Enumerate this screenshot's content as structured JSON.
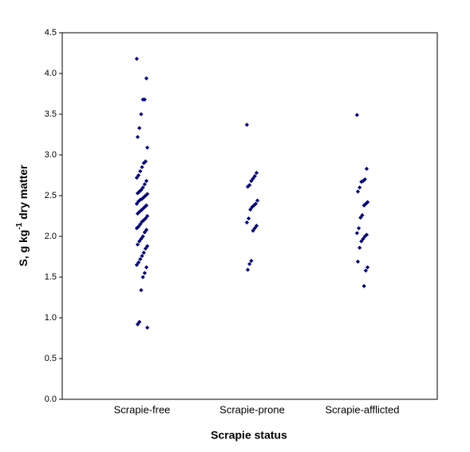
{
  "chart_data": {
    "type": "strip",
    "categories": [
      "Scrapie-free",
      "Scrapie-prone",
      "Scrapie-afflicted"
    ],
    "values": [
      [
        4.18,
        3.94,
        3.68,
        3.68,
        3.5,
        3.33,
        3.22,
        3.09,
        2.92,
        2.9,
        2.85,
        2.8,
        2.75,
        2.72,
        2.68,
        2.64,
        2.6,
        2.57,
        2.55,
        2.53,
        2.52,
        2.5,
        2.48,
        2.46,
        2.45,
        2.43,
        2.4,
        2.38,
        2.36,
        2.34,
        2.32,
        2.3,
        2.28,
        2.25,
        2.22,
        2.2,
        2.18,
        2.15,
        2.12,
        2.1,
        2.08,
        2.05,
        2.0,
        1.97,
        1.94,
        1.9,
        1.88,
        1.85,
        1.8,
        1.76,
        1.72,
        1.68,
        1.65,
        1.62,
        1.55,
        1.5,
        1.34,
        0.95,
        0.92,
        0.88
      ],
      [
        3.37,
        2.78,
        2.74,
        2.71,
        2.68,
        2.63,
        2.61,
        2.44,
        2.4,
        2.38,
        2.36,
        2.33,
        2.22,
        2.17,
        2.13,
        2.1,
        2.07,
        1.7,
        1.66,
        1.59
      ],
      [
        3.49,
        2.83,
        2.7,
        2.68,
        2.67,
        2.6,
        2.55,
        2.42,
        2.4,
        2.38,
        2.26,
        2.23,
        2.1,
        2.04,
        2.02,
        2.0,
        1.97,
        1.94,
        1.86,
        1.69,
        1.62,
        1.58,
        1.39
      ]
    ],
    "color": "#000080",
    "xlabel": "Scrapie status",
    "ylabel_parts": [
      "S, g kg",
      "-1",
      " dry matter"
    ],
    "ylim": [
      0,
      4.5
    ],
    "yticks": [
      {
        "value": 0,
        "label": "0.0"
      },
      {
        "value": 0.5,
        "label": "0.5"
      },
      {
        "value": 1,
        "label": "1.0"
      },
      {
        "value": 1.5,
        "label": "1.5"
      },
      {
        "value": 2,
        "label": "2.0"
      },
      {
        "value": 2.5,
        "label": "2.5"
      },
      {
        "value": 3,
        "label": "3.0"
      },
      {
        "value": 3.5,
        "label": "3.5"
      },
      {
        "value": 4,
        "label": "4.0"
      },
      {
        "value": 4.5,
        "label": "4.5"
      }
    ],
    "grid": false
  }
}
